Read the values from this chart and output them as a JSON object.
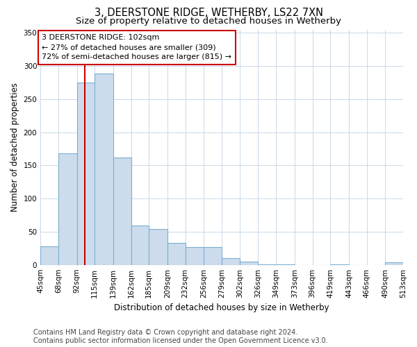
{
  "title": "3, DEERSTONE RIDGE, WETHERBY, LS22 7XN",
  "subtitle": "Size of property relative to detached houses in Wetherby",
  "xlabel": "Distribution of detached houses by size in Wetherby",
  "ylabel": "Number of detached properties",
  "bar_color": "#ccdcec",
  "bar_edge_color": "#7aaed0",
  "grid_color": "#c8d8e8",
  "background_color": "#ffffff",
  "fig_background_color": "#ffffff",
  "vline_x": 102,
  "vline_color": "#cc0000",
  "annotation_text": "3 DEERSTONE RIDGE: 102sqm\n← 27% of detached houses are smaller (309)\n72% of semi-detached houses are larger (815) →",
  "annotation_box_facecolor": "#ffffff",
  "annotation_box_edgecolor": "#cc0000",
  "bins": [
    45,
    68,
    92,
    115,
    139,
    162,
    185,
    209,
    232,
    256,
    279,
    302,
    326,
    349,
    373,
    396,
    419,
    443,
    466,
    490,
    513
  ],
  "heights": [
    28,
    168,
    275,
    289,
    162,
    59,
    54,
    33,
    27,
    27,
    10,
    5,
    1,
    1,
    0,
    0,
    1,
    0,
    0,
    4
  ],
  "ylim": [
    0,
    355
  ],
  "yticks": [
    0,
    50,
    100,
    150,
    200,
    250,
    300,
    350
  ],
  "footer_text": "Contains HM Land Registry data © Crown copyright and database right 2024.\nContains public sector information licensed under the Open Government Licence v3.0.",
  "title_fontsize": 10.5,
  "subtitle_fontsize": 9.5,
  "axis_label_fontsize": 8.5,
  "tick_fontsize": 7.5,
  "annotation_fontsize": 8,
  "footer_fontsize": 7
}
